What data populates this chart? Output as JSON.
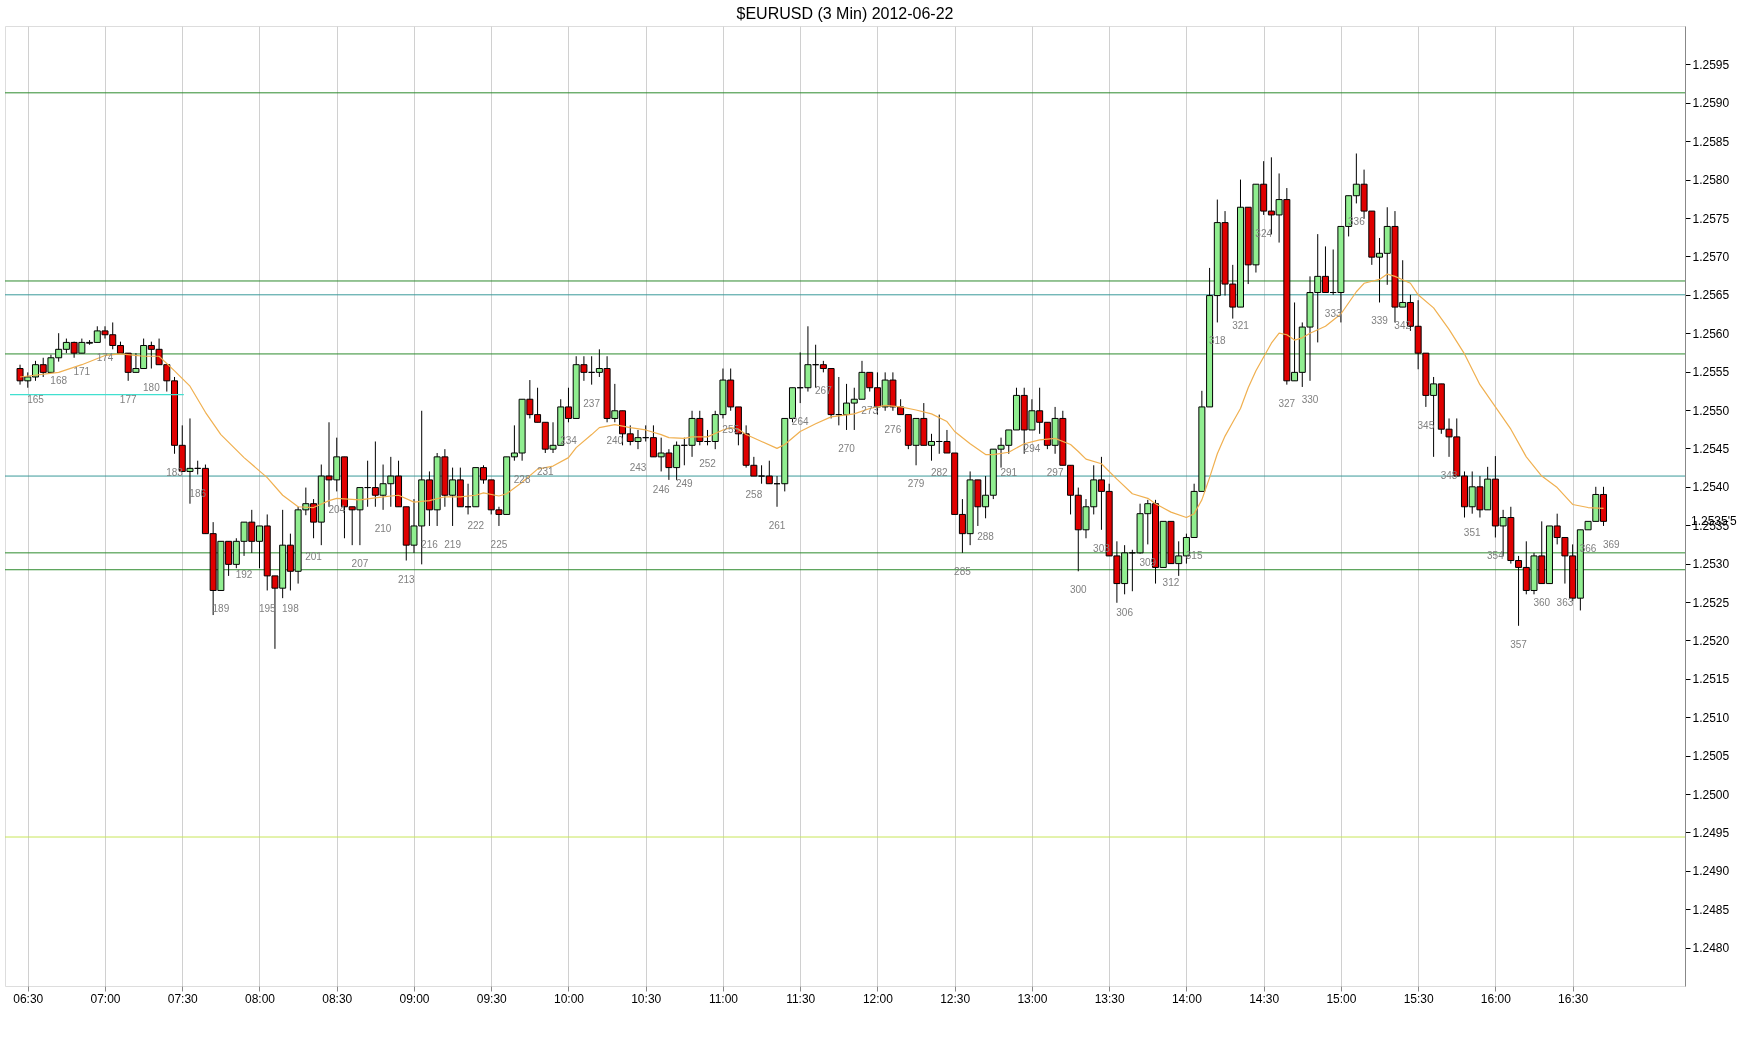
{
  "chart_data": {
    "type": "candlestick",
    "title": "$EURUSD (3 Min)  2012-06-22",
    "x": [
      6.45,
      6.5,
      6.55,
      6.6,
      6.65,
      6.7,
      6.75,
      6.8,
      6.85,
      6.9,
      6.95,
      7,
      7.05,
      7.1,
      7.15,
      7.2,
      7.25,
      7.3,
      7.35,
      7.4,
      7.45,
      7.5,
      7.55,
      7.6,
      7.65,
      7.7,
      7.75,
      7.8,
      7.85,
      7.9,
      7.95,
      8,
      8.05,
      8.1,
      8.15,
      8.2,
      8.25,
      8.3,
      8.35,
      8.4,
      8.45,
      8.5,
      8.55,
      8.6,
      8.65,
      8.7,
      8.75,
      8.8,
      8.85,
      8.9,
      8.95,
      9,
      9.05,
      9.1,
      9.15,
      9.2,
      9.25,
      9.3,
      9.35,
      9.4,
      9.45,
      9.5,
      9.55,
      9.6,
      9.65,
      9.7,
      9.75,
      9.8,
      9.85,
      9.9,
      9.95,
      10,
      10.05,
      10.1,
      10.15,
      10.2,
      10.25,
      10.3,
      10.35,
      10.4,
      10.45,
      10.5,
      10.55,
      10.6,
      10.65,
      10.7,
      10.75,
      10.8,
      10.85,
      10.9,
      10.95,
      11,
      11.05,
      11.1,
      11.15,
      11.2,
      11.25,
      11.3,
      11.35,
      11.4,
      11.45,
      11.5,
      11.55,
      11.6,
      11.65,
      11.7,
      11.75,
      11.8,
      11.85,
      11.9,
      11.95,
      12,
      12.05,
      12.1,
      12.15,
      12.2,
      12.25,
      12.3,
      12.35,
      12.4,
      12.45,
      12.5,
      12.55,
      12.6,
      12.65,
      12.7,
      12.75,
      12.8,
      12.85,
      12.9,
      12.95,
      13,
      13.05,
      13.1,
      13.15,
      13.2,
      13.25,
      13.3,
      13.35,
      13.4,
      13.45,
      13.5,
      13.55,
      13.6,
      13.65,
      13.7,
      13.75,
      13.8,
      13.85,
      13.9,
      13.95,
      14,
      14.05,
      14.1,
      14.15,
      14.2,
      14.25,
      14.3,
      14.35,
      14.4,
      14.45,
      14.5,
      14.55,
      14.6,
      14.65,
      14.7,
      14.75,
      14.8,
      14.85,
      14.9,
      14.95,
      15,
      15.05,
      15.1,
      15.15,
      15.2,
      15.25,
      15.3,
      15.35,
      15.4,
      15.45,
      15.5,
      15.55,
      15.6,
      15.65,
      15.7,
      15.75,
      15.8,
      15.85,
      15.9,
      15.95,
      16,
      16.05,
      16.1,
      16.15,
      16.2,
      16.25,
      16.3,
      16.35,
      16.4,
      16.45,
      16.5,
      16.55,
      16.6,
      16.65,
      16.7
    ],
    "ohlc": [
      [
        1.25554,
        1.25559,
        1.25533,
        1.25538
      ],
      [
        1.25538,
        1.25549,
        1.25529,
        1.25543
      ],
      [
        1.25543,
        1.25564,
        1.25538,
        1.25559
      ],
      [
        1.25559,
        1.25568,
        1.25543,
        1.25549
      ],
      [
        1.25549,
        1.25572,
        1.25549,
        1.25568
      ],
      [
        1.25568,
        1.256,
        1.25563,
        1.25579
      ],
      [
        1.25579,
        1.25593,
        1.25574,
        1.25588
      ],
      [
        1.25588,
        1.25589,
        1.25568,
        1.25574
      ],
      [
        1.25574,
        1.25593,
        1.25574,
        1.25588
      ],
      [
        1.25587,
        1.25591,
        1.25585,
        1.25588
      ],
      [
        1.25588,
        1.25609,
        1.25588,
        1.25603
      ],
      [
        1.25603,
        1.25609,
        1.25593,
        1.25598
      ],
      [
        1.25598,
        1.25614,
        1.25579,
        1.25584
      ],
      [
        1.25584,
        1.25589,
        1.25574,
        1.25574
      ],
      [
        1.25574,
        1.25574,
        1.25538,
        1.25549
      ],
      [
        1.25549,
        1.25574,
        1.25549,
        1.25554
      ],
      [
        1.25554,
        1.25593,
        1.25554,
        1.25584
      ],
      [
        1.25584,
        1.25589,
        1.25554,
        1.25579
      ],
      [
        1.25579,
        1.25593,
        1.25559,
        1.25559
      ],
      [
        1.25559,
        1.25559,
        1.25524,
        1.25538
      ],
      [
        1.25538,
        1.25543,
        1.25443,
        1.25454
      ],
      [
        1.25454,
        1.2548,
        1.2542,
        1.2542
      ],
      [
        1.2542,
        1.25489,
        1.25378,
        1.25424
      ],
      [
        1.25424,
        1.25434,
        1.25416,
        1.25424
      ],
      [
        1.25424,
        1.25429,
        1.25339,
        1.25339
      ],
      [
        1.25339,
        1.25354,
        1.25233,
        1.25265
      ],
      [
        1.25265,
        1.25329,
        1.25265,
        1.25329
      ],
      [
        1.25329,
        1.25329,
        1.25284,
        1.25299
      ],
      [
        1.25299,
        1.25333,
        1.25294,
        1.25329
      ],
      [
        1.25329,
        1.25354,
        1.2531,
        1.25354
      ],
      [
        1.25354,
        1.2537,
        1.25314,
        1.25329
      ],
      [
        1.25329,
        1.25349,
        1.25294,
        1.25349
      ],
      [
        1.25349,
        1.25364,
        1.25265,
        1.25284
      ],
      [
        1.25284,
        1.25284,
        1.25189,
        1.25268
      ],
      [
        1.25268,
        1.2537,
        1.25255,
        1.25324
      ],
      [
        1.25324,
        1.25339,
        1.25265,
        1.2529
      ],
      [
        1.2529,
        1.25374,
        1.25274,
        1.2537
      ],
      [
        1.2537,
        1.25399,
        1.25363,
        1.25378
      ],
      [
        1.25378,
        1.25384,
        1.25333,
        1.25354
      ],
      [
        1.25354,
        1.25429,
        1.25324,
        1.25414
      ],
      [
        1.25414,
        1.25484,
        1.25374,
        1.25409
      ],
      [
        1.25409,
        1.25464,
        1.25394,
        1.25439
      ],
      [
        1.25439,
        1.25439,
        1.25333,
        1.25374
      ],
      [
        1.25374,
        1.25374,
        1.25324,
        1.2537
      ],
      [
        1.2537,
        1.25399,
        1.25324,
        1.25399
      ],
      [
        1.25399,
        1.25434,
        1.25374,
        1.25399
      ],
      [
        1.25399,
        1.25459,
        1.25374,
        1.25389
      ],
      [
        1.25389,
        1.25429,
        1.2537,
        1.25404
      ],
      [
        1.25404,
        1.25439,
        1.25374,
        1.25414
      ],
      [
        1.25414,
        1.25434,
        1.25374,
        1.25374
      ],
      [
        1.25374,
        1.25374,
        1.25304,
        1.25324
      ],
      [
        1.25324,
        1.25384,
        1.25314,
        1.25349
      ],
      [
        1.25349,
        1.25499,
        1.25299,
        1.25409
      ],
      [
        1.25409,
        1.2542,
        1.25349,
        1.2537
      ],
      [
        1.2537,
        1.25444,
        1.25349,
        1.25439
      ],
      [
        1.25439,
        1.25449,
        1.25374,
        1.25389
      ],
      [
        1.25389,
        1.25425,
        1.25349,
        1.25409
      ],
      [
        1.25409,
        1.25425,
        1.25374,
        1.25374
      ],
      [
        1.25374,
        1.25404,
        1.25364,
        1.25374
      ],
      [
        1.25374,
        1.25425,
        1.25374,
        1.25425
      ],
      [
        1.25425,
        1.25428,
        1.25404,
        1.25409
      ],
      [
        1.25409,
        1.25409,
        1.25364,
        1.2537
      ],
      [
        1.2537,
        1.25374,
        1.25349,
        1.25364
      ],
      [
        1.25364,
        1.25439,
        1.25364,
        1.25439
      ],
      [
        1.25439,
        1.2548,
        1.25434,
        1.25444
      ],
      [
        1.25444,
        1.25514,
        1.25434,
        1.25514
      ],
      [
        1.25514,
        1.25539,
        1.25489,
        1.25494
      ],
      [
        1.25494,
        1.25529,
        1.25484,
        1.25484
      ],
      [
        1.25484,
        1.25484,
        1.25444,
        1.25449
      ],
      [
        1.25449,
        1.25484,
        1.25444,
        1.25454
      ],
      [
        1.25454,
        1.25514,
        1.25454,
        1.25504
      ],
      [
        1.25504,
        1.25529,
        1.25484,
        1.25489
      ],
      [
        1.25489,
        1.2557,
        1.25489,
        1.25559
      ],
      [
        1.25559,
        1.2557,
        1.25538,
        1.25549
      ],
      [
        1.25549,
        1.2557,
        1.25533,
        1.25549
      ],
      [
        1.25549,
        1.25579,
        1.25543,
        1.25554
      ],
      [
        1.25554,
        1.2557,
        1.25484,
        1.25489
      ],
      [
        1.25489,
        1.25534,
        1.25484,
        1.25499
      ],
      [
        1.25499,
        1.25499,
        1.25454,
        1.25469
      ],
      [
        1.25469,
        1.2548,
        1.25454,
        1.25459
      ],
      [
        1.25459,
        1.25474,
        1.25449,
        1.25464
      ],
      [
        1.25464,
        1.2548,
        1.25459,
        1.25464
      ],
      [
        1.25464,
        1.2548,
        1.25439,
        1.25439
      ],
      [
        1.25439,
        1.25464,
        1.2542,
        1.25444
      ],
      [
        1.25444,
        1.25449,
        1.25409,
        1.25425
      ],
      [
        1.25425,
        1.25459,
        1.25409,
        1.25454
      ],
      [
        1.25454,
        1.25464,
        1.25428,
        1.25454
      ],
      [
        1.25454,
        1.25499,
        1.25439,
        1.25489
      ],
      [
        1.25489,
        1.25499,
        1.25454,
        1.25459
      ],
      [
        1.25459,
        1.25474,
        1.25454,
        1.25459
      ],
      [
        1.25459,
        1.25499,
        1.25449,
        1.25494
      ],
      [
        1.25494,
        1.25554,
        1.25489,
        1.25539
      ],
      [
        1.25539,
        1.25554,
        1.25499,
        1.25504
      ],
      [
        1.25504,
        1.25504,
        1.25454,
        1.25469
      ],
      [
        1.25469,
        1.2548,
        1.25425,
        1.25428
      ],
      [
        1.25428,
        1.25439,
        1.25414,
        1.25414
      ],
      [
        1.25414,
        1.25428,
        1.25404,
        1.25414
      ],
      [
        1.25414,
        1.25434,
        1.25404,
        1.25404
      ],
      [
        1.25404,
        1.25414,
        1.25374,
        1.25404
      ],
      [
        1.25404,
        1.25489,
        1.25394,
        1.25489
      ],
      [
        1.25489,
        1.25529,
        1.25484,
        1.25529
      ],
      [
        1.25529,
        1.25575,
        1.25509,
        1.25529
      ],
      [
        1.25529,
        1.25609,
        1.25524,
        1.25559
      ],
      [
        1.25559,
        1.25585,
        1.25529,
        1.25559
      ],
      [
        1.25559,
        1.25564,
        1.25549,
        1.25554
      ],
      [
        1.25554,
        1.25554,
        1.25489,
        1.25494
      ],
      [
        1.25494,
        1.25543,
        1.2548,
        1.25494
      ],
      [
        1.25494,
        1.25534,
        1.25474,
        1.25509
      ],
      [
        1.25509,
        1.25529,
        1.25474,
        1.25514
      ],
      [
        1.25514,
        1.25564,
        1.25514,
        1.25549
      ],
      [
        1.25549,
        1.25549,
        1.25524,
        1.25529
      ],
      [
        1.25529,
        1.25549,
        1.25494,
        1.25504
      ],
      [
        1.25504,
        1.25549,
        1.25499,
        1.25539
      ],
      [
        1.25539,
        1.25549,
        1.25499,
        1.25504
      ],
      [
        1.25504,
        1.25514,
        1.25494,
        1.25494
      ],
      [
        1.25494,
        1.25494,
        1.25449,
        1.25454
      ],
      [
        1.25454,
        1.25489,
        1.25428,
        1.25489
      ],
      [
        1.25489,
        1.25509,
        1.25454,
        1.25454
      ],
      [
        1.25454,
        1.25469,
        1.25434,
        1.25459
      ],
      [
        1.25459,
        1.25494,
        1.25443,
        1.25459
      ],
      [
        1.25459,
        1.25474,
        1.25444,
        1.25444
      ],
      [
        1.25444,
        1.25444,
        1.25364,
        1.25364
      ],
      [
        1.25364,
        1.25384,
        1.25314,
        1.25339
      ],
      [
        1.25339,
        1.2542,
        1.25324,
        1.25409
      ],
      [
        1.25409,
        1.25409,
        1.25349,
        1.25374
      ],
      [
        1.25374,
        1.25414,
        1.25359,
        1.25389
      ],
      [
        1.25389,
        1.25449,
        1.25384,
        1.25449
      ],
      [
        1.25449,
        1.25464,
        1.25425,
        1.25454
      ],
      [
        1.25454,
        1.25474,
        1.25443,
        1.25474
      ],
      [
        1.25474,
        1.25529,
        1.25474,
        1.25519
      ],
      [
        1.25519,
        1.25529,
        1.25443,
        1.25474
      ],
      [
        1.25474,
        1.25514,
        1.25474,
        1.25499
      ],
      [
        1.25499,
        1.25529,
        1.25469,
        1.25484
      ],
      [
        1.25484,
        1.25484,
        1.25449,
        1.25454
      ],
      [
        1.25454,
        1.25504,
        1.25443,
        1.25489
      ],
      [
        1.25489,
        1.25499,
        1.25428,
        1.25428
      ],
      [
        1.25428,
        1.25428,
        1.25364,
        1.25389
      ],
      [
        1.25389,
        1.25399,
        1.2529,
        1.25344
      ],
      [
        1.25344,
        1.25384,
        1.25333,
        1.25374
      ],
      [
        1.25374,
        1.25428,
        1.25364,
        1.25409
      ],
      [
        1.25409,
        1.25439,
        1.25344,
        1.25394
      ],
      [
        1.25394,
        1.25404,
        1.2531,
        1.2531
      ],
      [
        1.2531,
        1.25329,
        1.25249,
        1.25274
      ],
      [
        1.25274,
        1.25324,
        1.2526,
        1.25314
      ],
      [
        1.25314,
        1.25318,
        1.25264,
        1.25314
      ],
      [
        1.25314,
        1.25378,
        1.25313,
        1.25365
      ],
      [
        1.25365,
        1.25383,
        1.25325,
        1.25378
      ],
      [
        1.25378,
        1.25383,
        1.25274,
        1.25295
      ],
      [
        1.25295,
        1.25355,
        1.25295,
        1.25355
      ],
      [
        1.25355,
        1.25355,
        1.253,
        1.253
      ],
      [
        1.253,
        1.25329,
        1.25284,
        1.2531
      ],
      [
        1.2531,
        1.25339,
        1.253,
        1.25334
      ],
      [
        1.25334,
        1.25404,
        1.25334,
        1.25394
      ],
      [
        1.25394,
        1.25525,
        1.25394,
        1.25504
      ],
      [
        1.25504,
        1.25685,
        1.25504,
        1.25649
      ],
      [
        1.25649,
        1.25774,
        1.25614,
        1.25744
      ],
      [
        1.25744,
        1.25759,
        1.25649,
        1.25664
      ],
      [
        1.25664,
        1.25689,
        1.25619,
        1.25634
      ],
      [
        1.25634,
        1.258,
        1.25634,
        1.25764
      ],
      [
        1.25764,
        1.25764,
        1.25664,
        1.25689
      ],
      [
        1.25689,
        1.25794,
        1.25679,
        1.25794
      ],
      [
        1.25794,
        1.25824,
        1.25754,
        1.25759
      ],
      [
        1.25759,
        1.25829,
        1.25729,
        1.25754
      ],
      [
        1.25754,
        1.25808,
        1.25718,
        1.25774
      ],
      [
        1.25774,
        1.25789,
        1.25533,
        1.25538
      ],
      [
        1.25538,
        1.2564,
        1.25538,
        1.25549
      ],
      [
        1.25549,
        1.25614,
        1.2553,
        1.25608
      ],
      [
        1.25608,
        1.25674,
        1.25538,
        1.25653
      ],
      [
        1.25653,
        1.25729,
        1.25588,
        1.25674
      ],
      [
        1.25674,
        1.25713,
        1.25653,
        1.25653
      ],
      [
        1.25653,
        1.25709,
        1.2565,
        1.25653
      ],
      [
        1.25653,
        1.25739,
        1.25614,
        1.25739
      ],
      [
        1.25739,
        1.25779,
        1.25726,
        1.25779
      ],
      [
        1.25779,
        1.25834,
        1.25769,
        1.25794
      ],
      [
        1.25794,
        1.25813,
        1.25749,
        1.25759
      ],
      [
        1.25759,
        1.25759,
        1.25689,
        1.25699
      ],
      [
        1.25699,
        1.25724,
        1.2564,
        1.25704
      ],
      [
        1.25704,
        1.25764,
        1.25663,
        1.25739
      ],
      [
        1.25739,
        1.25759,
        1.25614,
        1.25634
      ],
      [
        1.25634,
        1.25695,
        1.25634,
        1.2564
      ],
      [
        1.2564,
        1.2565,
        1.25603,
        1.25609
      ],
      [
        1.25609,
        1.25643,
        1.25553,
        1.25574
      ],
      [
        1.25574,
        1.25574,
        1.25504,
        1.25519
      ],
      [
        1.25519,
        1.25543,
        1.25439,
        1.25534
      ],
      [
        1.25534,
        1.25534,
        1.25469,
        1.25475
      ],
      [
        1.25475,
        1.25489,
        1.25439,
        1.25465
      ],
      [
        1.25465,
        1.25489,
        1.25414,
        1.25414
      ],
      [
        1.25414,
        1.2542,
        1.2536,
        1.25374
      ],
      [
        1.25374,
        1.2542,
        1.25365,
        1.254
      ],
      [
        1.254,
        1.25414,
        1.2536,
        1.2537
      ],
      [
        1.2537,
        1.25426,
        1.2537,
        1.2541
      ],
      [
        1.2541,
        1.2544,
        1.25334,
        1.25349
      ],
      [
        1.25349,
        1.2537,
        1.2531,
        1.2536
      ],
      [
        1.2536,
        1.25374,
        1.253,
        1.25304
      ],
      [
        1.25304,
        1.2531,
        1.25219,
        1.25295
      ],
      [
        1.25295,
        1.25329,
        1.2526,
        1.25265
      ],
      [
        1.25265,
        1.25314,
        1.2526,
        1.2531
      ],
      [
        1.2531,
        1.25355,
        1.25274,
        1.25274
      ],
      [
        1.25274,
        1.25349,
        1.25274,
        1.25349
      ],
      [
        1.25349,
        1.25365,
        1.25325,
        1.25334
      ],
      [
        1.25334,
        1.25334,
        1.25274,
        1.2531
      ],
      [
        1.2531,
        1.25325,
        1.25251,
        1.25255
      ],
      [
        1.25255,
        1.25344,
        1.25239,
        1.25344
      ],
      [
        1.25344,
        1.25355,
        1.25344,
        1.25355
      ],
      [
        1.25355,
        1.254,
        1.25355,
        1.2539
      ],
      [
        1.2539,
        1.254,
        1.25349,
        1.25355
      ]
    ],
    "series": [
      {
        "type": "line",
        "color": "#f0b050",
        "x": [
          6.45,
          6.7,
          6.85,
          7.0,
          7.1,
          7.25,
          7.35,
          7.45,
          7.55,
          7.65,
          7.75,
          7.9,
          8.05,
          8.15,
          8.25,
          8.35,
          8.45,
          8.5,
          8.65,
          8.8,
          8.9,
          9.0,
          9.1,
          9.2,
          9.3,
          9.4,
          9.45,
          9.55,
          9.6,
          9.7,
          9.8,
          9.9,
          10.0,
          10.05,
          10.15,
          10.2,
          10.3,
          10.4,
          10.5,
          10.6,
          10.65,
          10.75,
          10.8,
          10.9,
          11.0,
          11.05,
          11.1,
          11.15,
          11.25,
          11.35,
          11.4,
          11.5,
          11.6,
          11.7,
          11.85,
          11.95,
          12.05,
          12.15,
          12.25,
          12.35,
          12.45,
          12.5,
          12.6,
          12.7,
          12.75,
          12.85,
          12.95,
          13.05,
          13.15,
          13.25,
          13.3,
          13.35,
          13.45,
          13.55,
          13.65,
          13.75,
          13.8,
          13.9,
          14.0,
          14.05,
          14.1,
          14.15,
          14.2,
          14.25,
          14.3,
          14.35,
          14.4,
          14.45,
          14.5,
          14.55,
          14.6,
          14.65,
          14.7,
          14.75,
          14.8,
          14.9,
          15.0,
          15.1,
          15.15,
          15.25,
          15.3,
          15.35,
          15.45,
          15.5,
          15.6,
          15.7,
          15.8,
          15.9,
          16.0,
          16.1,
          16.2,
          16.3,
          16.4,
          16.5,
          16.6,
          16.7
        ],
        "values": [
          1.25543,
          1.25549,
          1.25559,
          1.25571,
          1.25573,
          1.2557,
          1.2557,
          1.25551,
          1.25531,
          1.25497,
          1.25468,
          1.25438,
          1.25412,
          1.25389,
          1.25374,
          1.25373,
          1.25382,
          1.25385,
          1.25383,
          1.25387,
          1.25389,
          1.2538,
          1.25382,
          1.25387,
          1.25387,
          1.25389,
          1.25392,
          1.25388,
          1.25391,
          1.25406,
          1.25423,
          1.25427,
          1.25438,
          1.25451,
          1.25468,
          1.25477,
          1.25481,
          1.25477,
          1.25474,
          1.25468,
          1.25464,
          1.25463,
          1.25465,
          1.25465,
          1.25474,
          1.25477,
          1.25475,
          1.25468,
          1.25459,
          1.2545,
          1.25455,
          1.25472,
          1.25482,
          1.25491,
          1.25495,
          1.25502,
          1.25506,
          1.25504,
          1.255,
          1.25495,
          1.25485,
          1.25472,
          1.25456,
          1.25442,
          1.25442,
          1.25445,
          1.25456,
          1.25461,
          1.25463,
          1.25455,
          1.25446,
          1.25436,
          1.2543,
          1.2541,
          1.25391,
          1.25385,
          1.25378,
          1.25367,
          1.2536,
          1.25365,
          1.25383,
          1.25412,
          1.25443,
          1.25466,
          1.25484,
          1.25502,
          1.25529,
          1.25551,
          1.25569,
          1.25587,
          1.256,
          1.25598,
          1.25591,
          1.25594,
          1.256,
          1.25609,
          1.25625,
          1.25654,
          1.25665,
          1.2567,
          1.25677,
          1.25674,
          1.25665,
          1.2565,
          1.25633,
          1.25605,
          1.25573,
          1.25533,
          1.25504,
          1.25475,
          1.25439,
          1.25414,
          1.25399,
          1.25377,
          1.25373,
          1.25372
        ]
      },
      {
        "type": "line",
        "color": "#40e0d0",
        "x": [
          6.385,
          7.51
        ],
        "values": [
          1.2552,
          1.2552
        ]
      }
    ],
    "xlim": [
      6.385,
      17.195
    ],
    "xticks": [
      {
        "value": 6.5,
        "label": "06:30"
      },
      {
        "value": 7,
        "label": "07:00"
      },
      {
        "value": 7.5,
        "label": "07:30"
      },
      {
        "value": 8,
        "label": "08:00"
      },
      {
        "value": 8.5,
        "label": "08:30"
      },
      {
        "value": 9,
        "label": "09:00"
      },
      {
        "value": 9.5,
        "label": "09:30"
      },
      {
        "value": 10,
        "label": "10:00"
      },
      {
        "value": 10.5,
        "label": "10:30"
      },
      {
        "value": 11,
        "label": "11:00"
      },
      {
        "value": 11.5,
        "label": "11:30"
      },
      {
        "value": 12,
        "label": "12:00"
      },
      {
        "value": 12.5,
        "label": "12:30"
      },
      {
        "value": 13,
        "label": "13:00"
      },
      {
        "value": 13.5,
        "label": "13:30"
      },
      {
        "value": 14,
        "label": "14:00"
      },
      {
        "value": 14.5,
        "label": "14:30"
      },
      {
        "value": 15,
        "label": "15:00"
      },
      {
        "value": 15.5,
        "label": "15:30"
      },
      {
        "value": 16,
        "label": "16:00"
      },
      {
        "value": 16.5,
        "label": "16:30"
      }
    ],
    "ylim": [
      1.2475,
      1.26
    ],
    "yticks": [
      {
        "value": 1.248,
        "label": "1.2480"
      },
      1.2485,
      {
        "value": 1.249,
        "label": "1.2490"
      },
      1.2495,
      {
        "value": 1.25,
        "label": "1.2500"
      },
      1.2505,
      {
        "value": 1.251,
        "label": "1.2510"
      },
      1.2515,
      {
        "value": 1.252,
        "label": "1.2520"
      },
      1.2525,
      {
        "value": 1.253,
        "label": "1.2530"
      },
      1.2535,
      {
        "value": 1.254,
        "label": "1.2540"
      },
      1.2545,
      {
        "value": 1.255,
        "label": "1.2550"
      },
      1.2555,
      {
        "value": 1.256,
        "label": "1.2560"
      },
      1.2565,
      {
        "value": 1.257,
        "label": "1.2570"
      },
      1.2575,
      {
        "value": 1.258,
        "label": "1.2580"
      },
      1.2585,
      {
        "value": 1.259,
        "label": "1.2590"
      },
      1.2595
    ],
    "grid": "x",
    "ref_lines": [
      {
        "axis": "y",
        "value": 1.25913,
        "color": "#2e8b2e"
      },
      {
        "axis": "y",
        "value": 1.25668,
        "color": "#2e8b2e"
      },
      {
        "axis": "y",
        "value": 1.2565,
        "color": "#3a9a9a"
      },
      {
        "axis": "y",
        "value": 1.25573,
        "color": "#2e8b2e"
      },
      {
        "axis": "y",
        "value": 1.25414,
        "color": "#3a9a9a"
      },
      {
        "axis": "y",
        "value": 1.25314,
        "color": "#2e8b2e"
      },
      {
        "axis": "y",
        "value": 1.25292,
        "color": "#2e8b2e"
      },
      {
        "axis": "y",
        "value": 1.24944,
        "color": "#c8e65a"
      }
    ],
    "annotations": [
      {
        "text": "165",
        "x": 6.55,
        "y": 1.25538
      },
      {
        "text": "168",
        "x": 6.7,
        "y": 1.25563
      },
      {
        "text": "171",
        "x": 6.85,
        "y": 1.25574
      },
      {
        "text": "174",
        "x": 7.0,
        "y": 1.25593
      },
      {
        "text": "177",
        "x": 7.15,
        "y": 1.25538
      },
      {
        "text": "180",
        "x": 7.3,
        "y": 1.25554
      },
      {
        "text": "183",
        "x": 7.45,
        "y": 1.25443
      },
      {
        "text": "186",
        "x": 7.6,
        "y": 1.25416
      },
      {
        "text": "189",
        "x": 7.75,
        "y": 1.25265
      },
      {
        "text": "192",
        "x": 7.9,
        "y": 1.2531
      },
      {
        "text": "195",
        "x": 8.05,
        "y": 1.25265
      },
      {
        "text": "198",
        "x": 8.2,
        "y": 1.25265
      },
      {
        "text": "201",
        "x": 8.35,
        "y": 1.25333
      },
      {
        "text": "204",
        "x": 8.5,
        "y": 1.25394
      },
      {
        "text": "207",
        "x": 8.65,
        "y": 1.25324
      },
      {
        "text": "210",
        "x": 8.8,
        "y": 1.2537
      },
      {
        "text": "213",
        "x": 8.95,
        "y": 1.25304
      },
      {
        "text": "216",
        "x": 9.1,
        "y": 1.25349
      },
      {
        "text": "219",
        "x": 9.25,
        "y": 1.25349
      },
      {
        "text": "222",
        "x": 9.4,
        "y": 1.25374
      },
      {
        "text": "225",
        "x": 9.55,
        "y": 1.25349
      },
      {
        "text": "228",
        "x": 9.7,
        "y": 1.25434
      },
      {
        "text": "231",
        "x": 9.85,
        "y": 1.25444
      },
      {
        "text": "234",
        "x": 10.0,
        "y": 1.25484
      },
      {
        "text": "237",
        "x": 10.15,
        "y": 1.25533
      },
      {
        "text": "240",
        "x": 10.3,
        "y": 1.25484
      },
      {
        "text": "243",
        "x": 10.45,
        "y": 1.25449
      },
      {
        "text": "246",
        "x": 10.6,
        "y": 1.2542
      },
      {
        "text": "249",
        "x": 10.75,
        "y": 1.25428
      },
      {
        "text": "252",
        "x": 10.9,
        "y": 1.25454
      },
      {
        "text": "255",
        "x": 11.05,
        "y": 1.25499
      },
      {
        "text": "258",
        "x": 11.2,
        "y": 1.25414
      },
      {
        "text": "261",
        "x": 11.35,
        "y": 1.25374
      },
      {
        "text": "264",
        "x": 11.5,
        "y": 1.25509
      },
      {
        "text": "267",
        "x": 11.65,
        "y": 1.25549
      },
      {
        "text": "270",
        "x": 11.8,
        "y": 1.25474
      },
      {
        "text": "273",
        "x": 11.95,
        "y": 1.25524
      },
      {
        "text": "276",
        "x": 12.1,
        "y": 1.25499
      },
      {
        "text": "279",
        "x": 12.25,
        "y": 1.25428
      },
      {
        "text": "282",
        "x": 12.4,
        "y": 1.25443
      },
      {
        "text": "285",
        "x": 12.55,
        "y": 1.25314
      },
      {
        "text": "288",
        "x": 12.7,
        "y": 1.25359
      },
      {
        "text": "291",
        "x": 12.85,
        "y": 1.25443
      },
      {
        "text": "294",
        "x": 13.0,
        "y": 1.25474
      },
      {
        "text": "297",
        "x": 13.15,
        "y": 1.25443
      },
      {
        "text": "300",
        "x": 13.3,
        "y": 1.2529
      },
      {
        "text": "303",
        "x": 13.45,
        "y": 1.25344
      },
      {
        "text": "306",
        "x": 13.6,
        "y": 1.2526
      },
      {
        "text": "309",
        "x": 13.75,
        "y": 1.25325
      },
      {
        "text": "312",
        "x": 13.9,
        "y": 1.253
      },
      {
        "text": "315",
        "x": 14.05,
        "y": 1.25334
      },
      {
        "text": "318",
        "x": 14.2,
        "y": 1.25614
      },
      {
        "text": "321",
        "x": 14.35,
        "y": 1.25634
      },
      {
        "text": "324",
        "x": 14.5,
        "y": 1.25754
      },
      {
        "text": "327",
        "x": 14.65,
        "y": 1.25533
      },
      {
        "text": "330",
        "x": 14.8,
        "y": 1.25538
      },
      {
        "text": "333",
        "x": 14.95,
        "y": 1.2565
      },
      {
        "text": "336",
        "x": 15.1,
        "y": 1.25769
      },
      {
        "text": "339",
        "x": 15.25,
        "y": 1.2564
      },
      {
        "text": "342",
        "x": 15.4,
        "y": 1.25634
      },
      {
        "text": "345",
        "x": 15.55,
        "y": 1.25504
      },
      {
        "text": "348",
        "x": 15.7,
        "y": 1.25439
      },
      {
        "text": "351",
        "x": 15.85,
        "y": 1.25365
      },
      {
        "text": "354",
        "x": 16.0,
        "y": 1.25334
      },
      {
        "text": "357",
        "x": 16.15,
        "y": 1.25219
      },
      {
        "text": "360",
        "x": 16.3,
        "y": 1.25274
      },
      {
        "text": "363",
        "x": 16.45,
        "y": 1.25274
      },
      {
        "text": "366",
        "x": 16.6,
        "y": 1.25344
      },
      "369",
      "1.2535'5"
    ]
  }
}
